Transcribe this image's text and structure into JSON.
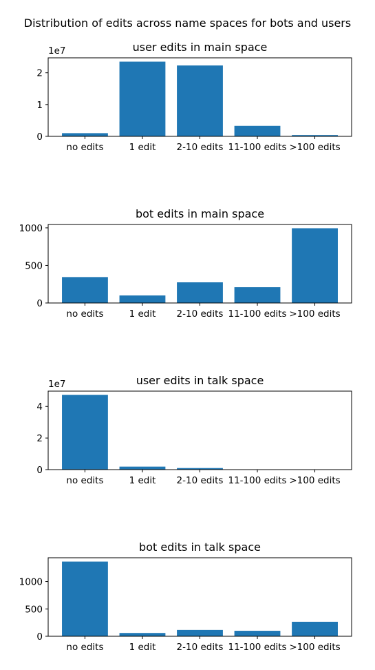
{
  "figure_title": "Distribution of edits across name spaces for bots and users",
  "colors": {
    "bar": "#1f77b4"
  },
  "chart_data": [
    {
      "type": "bar",
      "title": "user edits in main space",
      "categories": [
        "no edits",
        "1 edit",
        "2-10 edits",
        "11-100 edits",
        ">100 edits"
      ],
      "values": [
        1000000,
        23500000,
        22300000,
        3300000,
        400000
      ],
      "ylim": [
        0,
        24700000
      ],
      "yticks": [
        0,
        10000000,
        20000000
      ],
      "ytick_labels": [
        "0",
        "1",
        "2"
      ],
      "offset_label": "1e7",
      "xlabel": "",
      "ylabel": "",
      "grid": false
    },
    {
      "type": "bar",
      "title": "bot edits in main space",
      "categories": [
        "no edits",
        "1 edit",
        "2-10 edits",
        "11-100 edits",
        ">100 edits"
      ],
      "values": [
        345,
        100,
        275,
        210,
        995
      ],
      "ylim": [
        0,
        1045
      ],
      "yticks": [
        0,
        500,
        1000
      ],
      "ytick_labels": [
        "0",
        "500",
        "1000"
      ],
      "offset_label": "",
      "xlabel": "",
      "ylabel": "",
      "grid": false
    },
    {
      "type": "bar",
      "title": "user edits in talk space",
      "categories": [
        "no edits",
        "1 edit",
        "2-10 edits",
        "11-100 edits",
        ">100 edits"
      ],
      "values": [
        47300000,
        1900000,
        1000000,
        100000,
        20000
      ],
      "ylim": [
        0,
        49700000
      ],
      "yticks": [
        0,
        20000000,
        40000000
      ],
      "ytick_labels": [
        "0",
        "2",
        "4"
      ],
      "offset_label": "1e7",
      "xlabel": "",
      "ylabel": "",
      "grid": false
    },
    {
      "type": "bar",
      "title": "bot edits in talk space",
      "categories": [
        "no edits",
        "1 edit",
        "2-10 edits",
        "11-100 edits",
        ">100 edits"
      ],
      "values": [
        1365,
        60,
        115,
        100,
        265
      ],
      "ylim": [
        0,
        1435
      ],
      "yticks": [
        0,
        500,
        1000
      ],
      "ytick_labels": [
        "0",
        "500",
        "1000"
      ],
      "offset_label": "",
      "xlabel": "",
      "ylabel": "",
      "grid": false
    }
  ]
}
